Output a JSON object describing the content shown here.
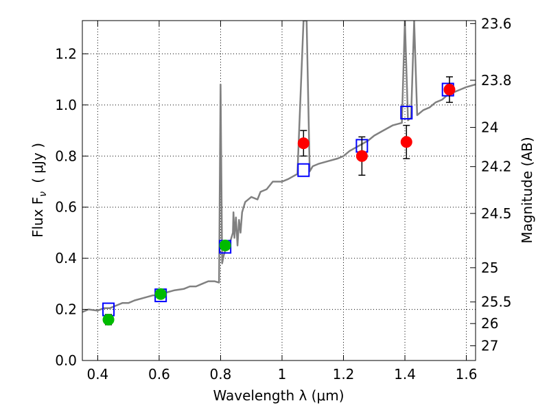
{
  "chart_data": {
    "type": "scatter",
    "xlabel": "Wavelength  λ (μm)",
    "ylabel": "Flux  F",
    "ylabel_sub": "ν",
    "ylabel_unit": "( μJy )",
    "y2label": "Magnitude (AB)",
    "xlim": [
      0.35,
      1.63
    ],
    "ylim": [
      0.0,
      1.33
    ],
    "grid": true,
    "xticks": [
      {
        "value": 0.4,
        "label": "0.4"
      },
      {
        "value": 0.6,
        "label": "0.6"
      },
      {
        "value": 0.8,
        "label": "0.8"
      },
      {
        "value": 1.0,
        "label": "1"
      },
      {
        "value": 1.2,
        "label": "1.2"
      },
      {
        "value": 1.4,
        "label": "1.4"
      },
      {
        "value": 1.6,
        "label": "1.6"
      }
    ],
    "yticks": [
      {
        "value": 0.0,
        "label": "0.0"
      },
      {
        "value": 0.2,
        "label": "0.2"
      },
      {
        "value": 0.4,
        "label": "0.4"
      },
      {
        "value": 0.6,
        "label": "0.6"
      },
      {
        "value": 0.8,
        "label": "0.8"
      },
      {
        "value": 1.0,
        "label": "1.0"
      },
      {
        "value": 1.2,
        "label": "1.2"
      }
    ],
    "y2ticks": [
      {
        "value": 23.6,
        "label": "23.6"
      },
      {
        "value": 23.8,
        "label": "23.8"
      },
      {
        "value": 24.0,
        "label": "24"
      },
      {
        "value": 24.2,
        "label": "24.2"
      },
      {
        "value": 24.5,
        "label": "24.5"
      },
      {
        "value": 25.0,
        "label": "25"
      },
      {
        "value": 25.5,
        "label": "25.5"
      },
      {
        "value": 26.0,
        "label": "26"
      },
      {
        "value": 27.0,
        "label": "27"
      }
    ],
    "colors": {
      "sed": "#808080",
      "model": "#0000ff",
      "optical": "#00bb00",
      "nir": "#ff0000",
      "grid": "#000000"
    },
    "sed_curve": [
      [
        0.35,
        0.19
      ],
      [
        0.37,
        0.2
      ],
      [
        0.4,
        0.195
      ],
      [
        0.42,
        0.205
      ],
      [
        0.44,
        0.205
      ],
      [
        0.46,
        0.215
      ],
      [
        0.48,
        0.225
      ],
      [
        0.5,
        0.225
      ],
      [
        0.52,
        0.235
      ],
      [
        0.55,
        0.245
      ],
      [
        0.58,
        0.255
      ],
      [
        0.6,
        0.255
      ],
      [
        0.62,
        0.265
      ],
      [
        0.65,
        0.275
      ],
      [
        0.68,
        0.28
      ],
      [
        0.7,
        0.29
      ],
      [
        0.72,
        0.29
      ],
      [
        0.74,
        0.3
      ],
      [
        0.76,
        0.31
      ],
      [
        0.78,
        0.31
      ],
      [
        0.795,
        0.305
      ],
      [
        0.8,
        1.08
      ],
      [
        0.805,
        0.38
      ],
      [
        0.81,
        0.41
      ],
      [
        0.82,
        0.45
      ],
      [
        0.83,
        0.46
      ],
      [
        0.84,
        0.5
      ],
      [
        0.842,
        0.58
      ],
      [
        0.845,
        0.48
      ],
      [
        0.85,
        0.56
      ],
      [
        0.855,
        0.45
      ],
      [
        0.86,
        0.55
      ],
      [
        0.865,
        0.5
      ],
      [
        0.87,
        0.58
      ],
      [
        0.875,
        0.6
      ],
      [
        0.88,
        0.62
      ],
      [
        0.9,
        0.64
      ],
      [
        0.92,
        0.63
      ],
      [
        0.93,
        0.66
      ],
      [
        0.95,
        0.67
      ],
      [
        0.97,
        0.7
      ],
      [
        1.0,
        0.7
      ],
      [
        1.02,
        0.71
      ],
      [
        1.05,
        0.73
      ],
      [
        1.07,
        1.33
      ],
      [
        1.08,
        1.33
      ],
      [
        1.09,
        0.74
      ],
      [
        1.1,
        0.76
      ],
      [
        1.12,
        0.77
      ],
      [
        1.15,
        0.78
      ],
      [
        1.18,
        0.79
      ],
      [
        1.2,
        0.8
      ],
      [
        1.22,
        0.82
      ],
      [
        1.25,
        0.84
      ],
      [
        1.28,
        0.86
      ],
      [
        1.3,
        0.88
      ],
      [
        1.33,
        0.9
      ],
      [
        1.36,
        0.92
      ],
      [
        1.39,
        0.93
      ],
      [
        1.4,
        1.33
      ],
      [
        1.41,
        0.94
      ],
      [
        1.42,
        0.95
      ],
      [
        1.43,
        1.33
      ],
      [
        1.44,
        0.96
      ],
      [
        1.46,
        0.98
      ],
      [
        1.48,
        0.99
      ],
      [
        1.5,
        1.01
      ],
      [
        1.52,
        1.02
      ],
      [
        1.54,
        1.04
      ],
      [
        1.56,
        1.05
      ],
      [
        1.58,
        1.06
      ],
      [
        1.6,
        1.07
      ],
      [
        1.63,
        1.08
      ]
    ],
    "model_points": [
      {
        "x": 0.435,
        "y": 0.2
      },
      {
        "x": 0.605,
        "y": 0.255
      },
      {
        "x": 0.815,
        "y": 0.445
      },
      {
        "x": 1.07,
        "y": 0.745
      },
      {
        "x": 1.26,
        "y": 0.84
      },
      {
        "x": 1.405,
        "y": 0.97
      },
      {
        "x": 1.54,
        "y": 1.06
      }
    ],
    "optical_points": [
      {
        "x": 0.435,
        "y": 0.16,
        "err": 0.02
      },
      {
        "x": 0.605,
        "y": 0.26,
        "err": 0.015
      },
      {
        "x": 0.815,
        "y": 0.45,
        "err": 0.015
      }
    ],
    "nir_points": [
      {
        "x": 1.07,
        "y": 0.85,
        "err": 0.05
      },
      {
        "x": 1.26,
        "y": 0.8,
        "err": 0.075
      },
      {
        "x": 1.405,
        "y": 0.855,
        "err": 0.065
      },
      {
        "x": 1.545,
        "y": 1.06,
        "err": 0.05
      }
    ]
  }
}
